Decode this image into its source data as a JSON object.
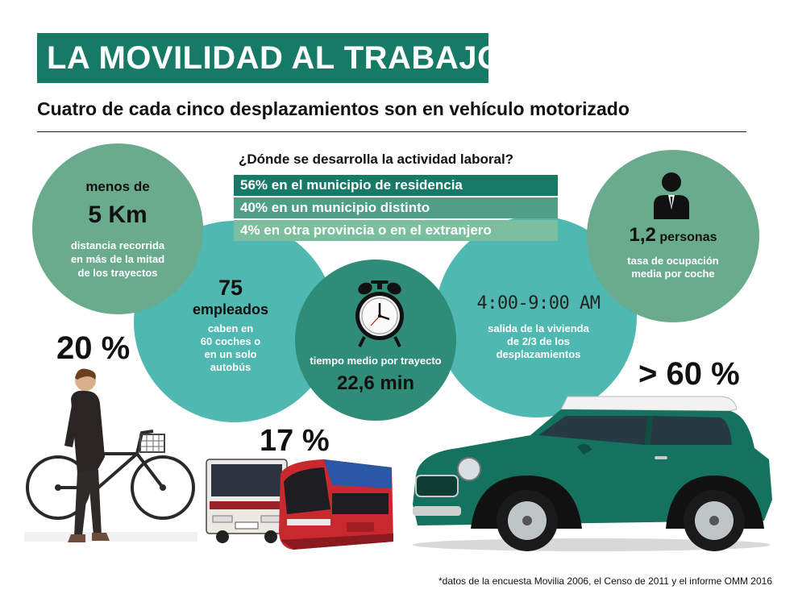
{
  "header": {
    "title": "LA MOVILIDAD AL TRABAJO",
    "title_mark": "*",
    "subtitle": "Cuatro de cada cinco desplazamientos son en vehículo motorizado"
  },
  "question": {
    "text": "¿Dónde se desarrolla la actividad laboral?",
    "options": [
      "56% en el municipio de residencia",
      "40% en un municipio distinto",
      "4% en otra provincia o en el extranjero"
    ]
  },
  "distance": {
    "pre": "menos de",
    "value": "5 Km",
    "desc1": "distancia recorrida",
    "desc2": "en más de la mitad",
    "desc3": "de los trayectos"
  },
  "employees": {
    "value": "75",
    "label": "empleados",
    "desc1": "caben en",
    "desc2": "60 coches o",
    "desc3": "en un solo",
    "desc4": "autobús"
  },
  "time": {
    "label": "tiempo medio por trayecto",
    "value": "22,6 min"
  },
  "departure": {
    "clock": "4:00-9:00 AM",
    "desc1": "salida de la vivienda",
    "desc2": "de 2/3 de los",
    "desc3": "desplazamientos"
  },
  "occupancy": {
    "value": "1,2",
    "unit": "personas",
    "desc1": "tasa de ocupación",
    "desc2": "media por coche"
  },
  "shares": {
    "walk_bike": "20 %",
    "public": "17 %",
    "car": "> 60 %"
  },
  "footnote": "*datos de la encuesta Movilia 2006,  el Censo de 2011 y el informe OMM 2016",
  "colors": {
    "dark_green": "#167a67",
    "sage": "#6aab8e",
    "teal": "#4fb8b0",
    "dark_teal": "#2f8c79"
  }
}
